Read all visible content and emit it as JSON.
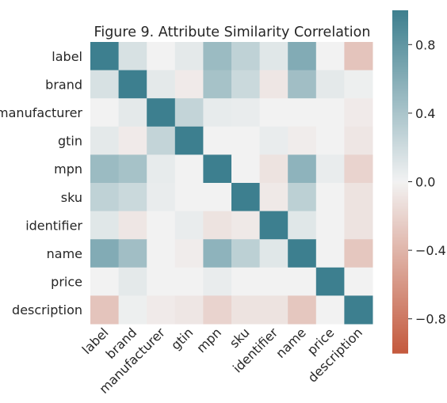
{
  "chart_data": {
    "type": "heatmap",
    "title": "Figure 9. Attribute Similarity Correlation",
    "categories": [
      "label",
      "brand",
      "manufacturer",
      "gtin",
      "mpn",
      "sku",
      "identifier",
      "name",
      "price",
      "description"
    ],
    "values": [
      [
        1.0,
        0.15,
        0.0,
        0.08,
        0.48,
        0.28,
        0.1,
        0.62,
        0.0,
        -0.3
      ],
      [
        0.15,
        1.0,
        0.08,
        -0.05,
        0.42,
        0.22,
        -0.08,
        0.45,
        0.08,
        0.03
      ],
      [
        0.0,
        0.08,
        1.0,
        0.26,
        0.06,
        0.05,
        0.0,
        0.0,
        0.0,
        -0.05
      ],
      [
        0.08,
        -0.05,
        0.26,
        1.0,
        0.0,
        0.0,
        0.05,
        -0.04,
        0.0,
        -0.08
      ],
      [
        0.48,
        0.42,
        0.06,
        0.0,
        1.0,
        0.0,
        -0.1,
        0.55,
        0.05,
        -0.2
      ],
      [
        0.28,
        0.22,
        0.05,
        0.0,
        0.0,
        1.0,
        -0.06,
        0.3,
        0.0,
        -0.1
      ],
      [
        0.1,
        -0.08,
        0.0,
        0.05,
        -0.1,
        -0.06,
        1.0,
        0.1,
        0.0,
        -0.1
      ],
      [
        0.62,
        0.45,
        0.0,
        -0.04,
        0.55,
        0.3,
        0.1,
        1.0,
        0.0,
        -0.28
      ],
      [
        0.0,
        0.08,
        0.0,
        0.0,
        0.05,
        0.0,
        0.0,
        0.0,
        1.0,
        0.0
      ],
      [
        -0.3,
        0.03,
        -0.05,
        -0.08,
        -0.2,
        -0.1,
        -0.1,
        -0.28,
        0.0,
        1.0
      ]
    ],
    "vmin": -1.0,
    "vmax": 1.0,
    "colorbar_ticks": [
      0.8,
      0.4,
      0.0,
      -0.4,
      -0.8
    ],
    "colorbar_tick_labels": [
      "0.8",
      "0.4",
      "0.0",
      "−0.4",
      "−0.8"
    ],
    "colors": {
      "negative": "#c4593d",
      "neutral": "#f2f2f2",
      "positive": "#3d7f8f"
    },
    "grid": false
  }
}
